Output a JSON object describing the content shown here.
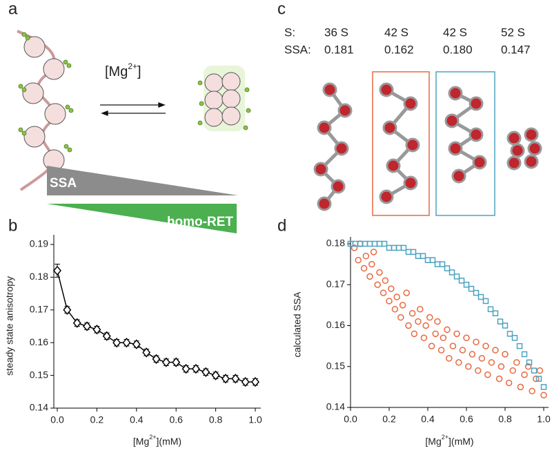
{
  "panel_labels": [
    "a",
    "b",
    "c",
    "d"
  ],
  "panel_a": {
    "mg_label": [
      "[Mg",
      "2+",
      "]"
    ],
    "ssa_label": "SSA",
    "homo_ret_label": "homo-RET"
  },
  "panel_c": {
    "row_labels": [
      "S:",
      "SSA:"
    ],
    "columns": [
      {
        "s": "36 S",
        "ssa": "0.181"
      },
      {
        "s": "42 S",
        "ssa": "0.162"
      },
      {
        "s": "42 S",
        "ssa": "0.180"
      },
      {
        "s": "52 S",
        "ssa": "0.147"
      }
    ]
  },
  "chart_data": [
    {
      "type": "line",
      "y_label": "steady state anisotropy",
      "x_label": [
        "[Mg",
        "2+",
        "](mM)"
      ],
      "x": [
        0,
        0.05,
        0.1,
        0.15,
        0.2,
        0.25,
        0.3,
        0.35,
        0.4,
        0.45,
        0.5,
        0.55,
        0.6,
        0.65,
        0.7,
        0.75,
        0.8,
        0.85,
        0.9,
        0.95,
        1.0
      ],
      "values": [
        0.182,
        0.17,
        0.166,
        0.165,
        0.164,
        0.162,
        0.16,
        0.16,
        0.1595,
        0.157,
        0.155,
        0.154,
        0.154,
        0.152,
        0.152,
        0.151,
        0.15,
        0.149,
        0.149,
        0.148,
        0.148
      ],
      "errors": [
        0.002,
        0.001,
        0.001,
        0.001,
        0.001,
        0.001,
        0.001,
        0.001,
        0.001,
        0.001,
        0.001,
        0.001,
        0.001,
        0.001,
        0.001,
        0.001,
        0.001,
        0.001,
        0.001,
        0.001,
        0.001
      ],
      "color": "#000000",
      "xlim": [
        0,
        1.0
      ],
      "xticks": [
        {
          "value": 0,
          "label": "0.0"
        },
        {
          "value": 0.2,
          "label": "0.2"
        },
        {
          "value": 0.4,
          "label": "0.4"
        },
        {
          "value": 0.6,
          "label": "0.6"
        },
        {
          "value": 0.8,
          "label": "0.8"
        },
        {
          "value": 1.0,
          "label": "1.0"
        }
      ],
      "ylim": [
        0.14,
        0.19
      ],
      "yticks": [
        0.14,
        0.15,
        0.16,
        0.17,
        0.18,
        0.19
      ]
    },
    {
      "type": "scatter",
      "y_label": "calculated SSA",
      "x_label": [
        "[Mg",
        "2+",
        "](mM)"
      ],
      "series": [
        {
          "color": "#e8683f",
          "marker": "circle",
          "x": [
            0.02,
            0.04,
            0.05,
            0.07,
            0.08,
            0.1,
            0.11,
            0.12,
            0.14,
            0.15,
            0.17,
            0.18,
            0.2,
            0.21,
            0.23,
            0.24,
            0.26,
            0.27,
            0.29,
            0.3,
            0.32,
            0.33,
            0.35,
            0.36,
            0.38,
            0.39,
            0.41,
            0.42,
            0.44,
            0.45,
            0.47,
            0.48,
            0.5,
            0.51,
            0.53,
            0.55,
            0.56,
            0.58,
            0.6,
            0.61,
            0.63,
            0.65,
            0.66,
            0.68,
            0.7,
            0.71,
            0.73,
            0.75,
            0.77,
            0.78,
            0.8,
            0.82,
            0.84,
            0.86,
            0.88,
            0.9,
            0.92,
            0.94,
            0.96,
            0.98,
            1.0
          ],
          "values": [
            0.179,
            0.176,
            0.18,
            0.174,
            0.177,
            0.172,
            0.175,
            0.178,
            0.17,
            0.173,
            0.168,
            0.171,
            0.166,
            0.169,
            0.164,
            0.167,
            0.162,
            0.165,
            0.168,
            0.16,
            0.163,
            0.158,
            0.161,
            0.164,
            0.157,
            0.16,
            0.162,
            0.155,
            0.158,
            0.161,
            0.154,
            0.157,
            0.159,
            0.152,
            0.155,
            0.158,
            0.151,
            0.154,
            0.157,
            0.15,
            0.153,
            0.156,
            0.149,
            0.152,
            0.155,
            0.148,
            0.151,
            0.154,
            0.147,
            0.15,
            0.153,
            0.146,
            0.149,
            0.151,
            0.145,
            0.148,
            0.15,
            0.144,
            0.147,
            0.149,
            0.143
          ]
        },
        {
          "color": "#4aa3c0",
          "marker": "square",
          "x": [
            0,
            0.025,
            0.05,
            0.075,
            0.1,
            0.125,
            0.15,
            0.175,
            0.2,
            0.225,
            0.25,
            0.275,
            0.3,
            0.325,
            0.35,
            0.375,
            0.4,
            0.425,
            0.45,
            0.475,
            0.5,
            0.525,
            0.55,
            0.575,
            0.6,
            0.625,
            0.65,
            0.675,
            0.7,
            0.725,
            0.75,
            0.775,
            0.8,
            0.825,
            0.85,
            0.875,
            0.9,
            0.925,
            0.95,
            0.975,
            1.0
          ],
          "values": [
            0.18,
            0.18,
            0.18,
            0.18,
            0.18,
            0.18,
            0.18,
            0.18,
            0.179,
            0.179,
            0.179,
            0.179,
            0.178,
            0.178,
            0.177,
            0.177,
            0.176,
            0.176,
            0.175,
            0.175,
            0.174,
            0.173,
            0.172,
            0.171,
            0.17,
            0.169,
            0.168,
            0.167,
            0.166,
            0.164,
            0.163,
            0.161,
            0.16,
            0.158,
            0.157,
            0.155,
            0.153,
            0.151,
            0.149,
            0.147,
            0.145
          ]
        }
      ],
      "xlim": [
        0,
        1.0
      ],
      "xticks": [
        {
          "value": 0,
          "label": "0.0"
        },
        {
          "value": 0.2,
          "label": "0.2"
        },
        {
          "value": 0.4,
          "label": "0.4"
        },
        {
          "value": 0.6,
          "label": "0.6"
        },
        {
          "value": 0.8,
          "label": "0.8"
        },
        {
          "value": 1.0,
          "label": "1.0"
        }
      ],
      "ylim": [
        0.14,
        0.18
      ],
      "yticks": [
        0.14,
        0.15,
        0.16,
        0.17,
        0.18
      ]
    }
  ]
}
